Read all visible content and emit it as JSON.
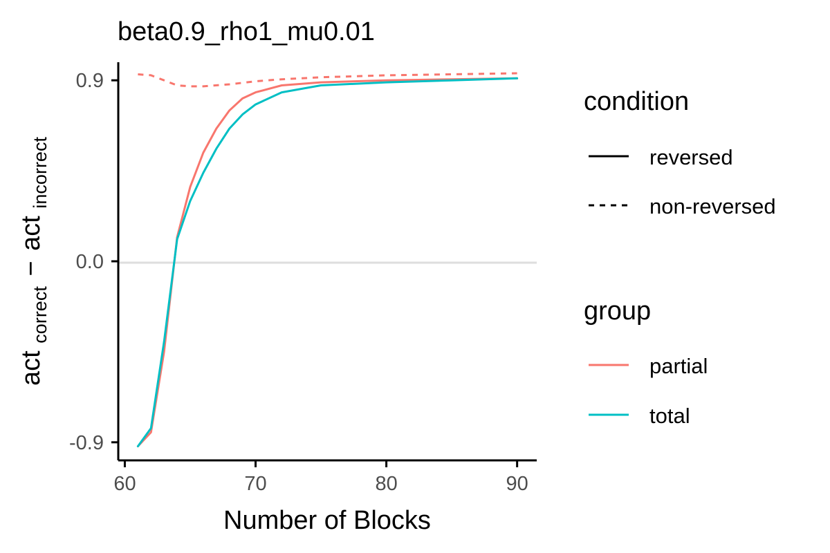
{
  "chart_data": {
    "type": "line",
    "title": "beta0.9_rho1_mu0.01",
    "xlabel": "Number of Blocks",
    "ylabel": {
      "part1": "act",
      "sub1": "correct",
      "minus": "−",
      "part2": "act",
      "sub2": "incorrect"
    },
    "xlim": [
      59.5,
      91.5
    ],
    "ylim": [
      -0.99,
      0.99
    ],
    "xticks": [
      {
        "value": 60,
        "label": "60"
      },
      {
        "value": 70,
        "label": "70"
      },
      {
        "value": 80,
        "label": "80"
      },
      {
        "value": 90,
        "label": "90"
      }
    ],
    "yticks": [
      {
        "value": -0.9,
        "label": "-0.9"
      },
      {
        "value": 0.0,
        "label": "0.0"
      },
      {
        "value": 0.9,
        "label": "0.9"
      }
    ],
    "reference_line": {
      "y": 0.0,
      "color": "#dedede"
    },
    "grid": false,
    "colors": {
      "partial": "#F8766D",
      "total": "#00BFC4",
      "axis": "#000000",
      "tick_text": "#4d4d4d"
    },
    "series": [
      {
        "name": "partial",
        "condition": "reversed",
        "group": "partial",
        "x": [
          61,
          62,
          63,
          64,
          65,
          66,
          67,
          68,
          69,
          70,
          72,
          75,
          80,
          85,
          90
        ],
        "y": [
          -0.92,
          -0.85,
          -0.45,
          0.12,
          0.37,
          0.54,
          0.66,
          0.75,
          0.81,
          0.84,
          0.875,
          0.89,
          0.9,
          0.905,
          0.91
        ]
      },
      {
        "name": "total",
        "condition": "reversed",
        "group": "total",
        "x": [
          61,
          62,
          63,
          64,
          65,
          66,
          67,
          68,
          69,
          70,
          72,
          75,
          80,
          85,
          90
        ],
        "y": [
          -0.92,
          -0.83,
          -0.4,
          0.11,
          0.3,
          0.44,
          0.56,
          0.66,
          0.73,
          0.78,
          0.84,
          0.875,
          0.89,
          0.9,
          0.91
        ]
      },
      {
        "name": "partial",
        "condition": "non-reversed",
        "group": "partial",
        "x": [
          61,
          62,
          63,
          64,
          65,
          66,
          68,
          70,
          72,
          75,
          80,
          85,
          90
        ],
        "y": [
          0.93,
          0.925,
          0.9,
          0.875,
          0.87,
          0.87,
          0.88,
          0.895,
          0.905,
          0.915,
          0.925,
          0.93,
          0.935
        ]
      }
    ],
    "legend": {
      "placement": "right",
      "condition": {
        "title": "condition",
        "items": [
          {
            "label": "reversed",
            "linetype": "solid"
          },
          {
            "label": "non-reversed",
            "linetype": "dashed"
          }
        ]
      },
      "group": {
        "title": "group",
        "items": [
          {
            "label": "partial",
            "color": "#F8766D"
          },
          {
            "label": "total",
            "color": "#00BFC4"
          }
        ]
      }
    }
  }
}
